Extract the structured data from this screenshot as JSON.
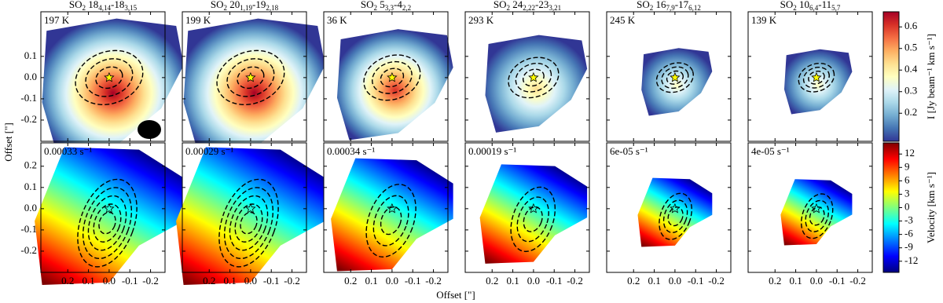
{
  "chart_data": {
    "type": "map-grid",
    "x_label": "Offset [\"]",
    "y_label": "Offset [\"]",
    "xlim": [
      0.33,
      -0.27
    ],
    "ylim": [
      -0.3,
      0.31
    ],
    "xticks": [
      0.2,
      0.1,
      {
        "value": 0,
        "label": "0.0"
      },
      -0.1,
      -0.2
    ],
    "top_yticks": [
      0.1,
      {
        "value": 0,
        "label": "0.0"
      },
      -0.1,
      -0.2
    ],
    "bottom_yticks": [
      0.2,
      0.1,
      {
        "value": 0,
        "label": "0.0"
      },
      -0.1,
      -0.2
    ],
    "panels": [
      {
        "title": {
          "species": "SO",
          "species_sub": "2",
          "upper": " 18",
          "upper_sub": "4,14",
          "lower": "-18",
          "lower_sub": "3,15"
        },
        "temperature": "197 K",
        "rate": "0.00033 s⁻¹"
      },
      {
        "title": {
          "species": "SO",
          "species_sub": "2",
          "upper": " 20",
          "upper_sub": "1,19",
          "lower": "-19",
          "lower_sub": "2,18"
        },
        "temperature": "199 K",
        "rate": "0.00029 s⁻¹"
      },
      {
        "title": {
          "species": "SO",
          "species_sub": "2",
          "upper": " 5",
          "upper_sub": "3,3",
          "lower": "-4",
          "lower_sub": "2,2"
        },
        "temperature": "36 K",
        "rate": "0.00034 s⁻¹"
      },
      {
        "title": {
          "species": "SO",
          "species_sub": "2",
          "upper": " 24",
          "upper_sub": "2,22",
          "lower": "-23",
          "lower_sub": "3,21"
        },
        "temperature": "293 K",
        "rate": "0.00019 s⁻¹"
      },
      {
        "title": {
          "species": "SO",
          "species_sub": "2",
          "upper": " 16",
          "upper_sub": "7,9",
          "lower": "-17",
          "lower_sub": "6,12"
        },
        "temperature": "245 K",
        "rate": "6e-05 s⁻¹"
      },
      {
        "title": {
          "species": "SO",
          "species_sub": "2",
          "upper": " 10",
          "upper_sub": "6,4",
          "lower": "-11",
          "lower_sub": "5,7"
        },
        "temperature": "139 K",
        "rate": "4e-05 s⁻¹"
      }
    ],
    "colorbars": [
      {
        "label": "I [Jy beam⁻¹ km s⁻¹]",
        "lim": [
          0.07,
          0.67
        ],
        "ticks": [
          0.2,
          0.3,
          0.4,
          0.5,
          0.6
        ],
        "colors": [
          "#313695",
          "#4575b4",
          "#74add1",
          "#abd9e9",
          "#e0f3f8",
          "#ffffbf",
          "#fee090",
          "#fdae61",
          "#f46d43",
          "#d73027",
          "#a50026"
        ]
      },
      {
        "label": "Velocity [km s⁻¹]",
        "lim": [
          -14.5,
          14.5
        ],
        "ticks": [
          -12,
          -9,
          -6,
          -3,
          0,
          3,
          6,
          9,
          12
        ],
        "colors": [
          "#00007f",
          "#0000ff",
          "#007fff",
          "#00ffff",
          "#7fff7f",
          "#ffff00",
          "#ff7f00",
          "#ff0000",
          "#7f0000"
        ]
      }
    ]
  }
}
